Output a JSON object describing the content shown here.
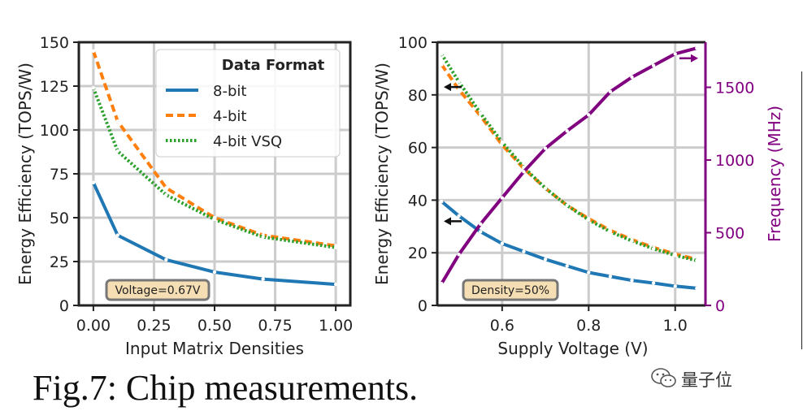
{
  "caption": "Fig.7: Chip measurements.",
  "watermark": "量子位",
  "colors": {
    "blue": "#1f77b4",
    "orange": "#ff7f0e",
    "green": "#2ca02c",
    "purple": "#800080",
    "annotation_fill": "#f5deb3",
    "annotation_border": "#777777",
    "grid": "#cccccc"
  },
  "chart_data": [
    {
      "type": "line",
      "xlabel": "Input Matrix Densities",
      "ylabel": "Energy Efficiency (TOPS/W)",
      "xlim": [
        -0.06,
        1.06
      ],
      "ylim": [
        0,
        150
      ],
      "xticks": [
        "0.00",
        "0.25",
        "0.50",
        "0.75",
        "1.00"
      ],
      "xtick_values": [
        0,
        0.25,
        0.5,
        0.75,
        1.0
      ],
      "yticks": [
        "0",
        "25",
        "50",
        "75",
        "100",
        "125",
        "150"
      ],
      "ytick_values": [
        0,
        25,
        50,
        75,
        100,
        125,
        150
      ],
      "grid": true,
      "legend": {
        "title": "Data Format",
        "placement": "top-right",
        "entries": [
          "8-bit",
          "4-bit",
          "4-bit VSQ"
        ]
      },
      "annotation": "Voltage=0.67V",
      "series": [
        {
          "name": "8-bit",
          "style": "solid",
          "color": "#1f77b4",
          "x": [
            0,
            0.1,
            0.3,
            0.5,
            0.7,
            1.0
          ],
          "y": [
            70,
            40,
            26,
            19,
            15,
            12
          ]
        },
        {
          "name": "4-bit",
          "style": "dashed",
          "color": "#ff7f0e",
          "x": [
            0,
            0.1,
            0.3,
            0.5,
            0.7,
            1.0
          ],
          "y": [
            145,
            105,
            67,
            50,
            40,
            34
          ]
        },
        {
          "name": "4-bit VSQ",
          "style": "dotted",
          "color": "#2ca02c",
          "x": [
            0,
            0.1,
            0.3,
            0.5,
            0.7,
            1.0
          ],
          "y": [
            124,
            88,
            63,
            49,
            39,
            33
          ]
        }
      ]
    },
    {
      "type": "line",
      "xlabel": "Supply Voltage (V)",
      "ylabel": "Energy Efficiency (TOPS/W)",
      "y2label": "Frequency (MHz)",
      "xlim": [
        0.45,
        1.07
      ],
      "ylim": [
        0,
        100
      ],
      "y2lim": [
        0,
        1810
      ],
      "xticks": [
        "0.6",
        "0.8",
        "1.0"
      ],
      "xtick_values": [
        0.6,
        0.8,
        1.0
      ],
      "yticks": [
        "0",
        "20",
        "40",
        "60",
        "80",
        "100"
      ],
      "ytick_values": [
        0,
        20,
        40,
        60,
        80,
        100
      ],
      "y2ticks": [
        "0",
        "500",
        "1000",
        "1500"
      ],
      "y2tick_values": [
        0,
        500,
        1000,
        1500
      ],
      "grid": true,
      "annotation": "Density=50%",
      "series": [
        {
          "name": "8-bit",
          "axis": "left",
          "style": "solid",
          "color": "#1f77b4",
          "x": [
            0.46,
            0.5,
            0.55,
            0.6,
            0.65,
            0.7,
            0.75,
            0.8,
            0.85,
            0.9,
            0.95,
            1.0,
            1.05
          ],
          "y": [
            39.5,
            34,
            28,
            23.5,
            20.5,
            17.5,
            15,
            12.5,
            11,
            9.5,
            8.5,
            7.3,
            6.5
          ]
        },
        {
          "name": "4-bit",
          "axis": "left",
          "style": "dashed",
          "color": "#ff7f0e",
          "x": [
            0.46,
            0.5,
            0.55,
            0.6,
            0.65,
            0.7,
            0.75,
            0.8,
            0.85,
            0.9,
            0.95,
            1.0,
            1.05
          ],
          "y": [
            91.5,
            82,
            72,
            61,
            52,
            44.5,
            38,
            33,
            28.5,
            25,
            22,
            19.5,
            17.5
          ]
        },
        {
          "name": "4-bit VSQ",
          "axis": "left",
          "style": "dotted",
          "color": "#2ca02c",
          "x": [
            0.46,
            0.5,
            0.55,
            0.6,
            0.65,
            0.7,
            0.75,
            0.8,
            0.85,
            0.9,
            0.95,
            1.0,
            1.05
          ],
          "y": [
            95.5,
            85,
            73,
            62,
            52.5,
            44.5,
            38,
            32.5,
            28,
            24.5,
            21.5,
            19,
            17
          ]
        },
        {
          "name": "Frequency",
          "axis": "right",
          "style": "solid",
          "color": "#800080",
          "x": [
            0.46,
            0.5,
            0.55,
            0.6,
            0.65,
            0.7,
            0.75,
            0.8,
            0.85,
            0.9,
            0.95,
            1.0,
            1.05
          ],
          "y": [
            150,
            350,
            560,
            740,
            920,
            1080,
            1200,
            1310,
            1470,
            1570,
            1650,
            1730,
            1770
          ]
        }
      ],
      "axis_arrows": [
        {
          "points_to": "left",
          "at_y": 83
        },
        {
          "points_to": "left",
          "at_y": 32
        },
        {
          "points_to": "right",
          "at_y2": 1700
        }
      ]
    }
  ]
}
